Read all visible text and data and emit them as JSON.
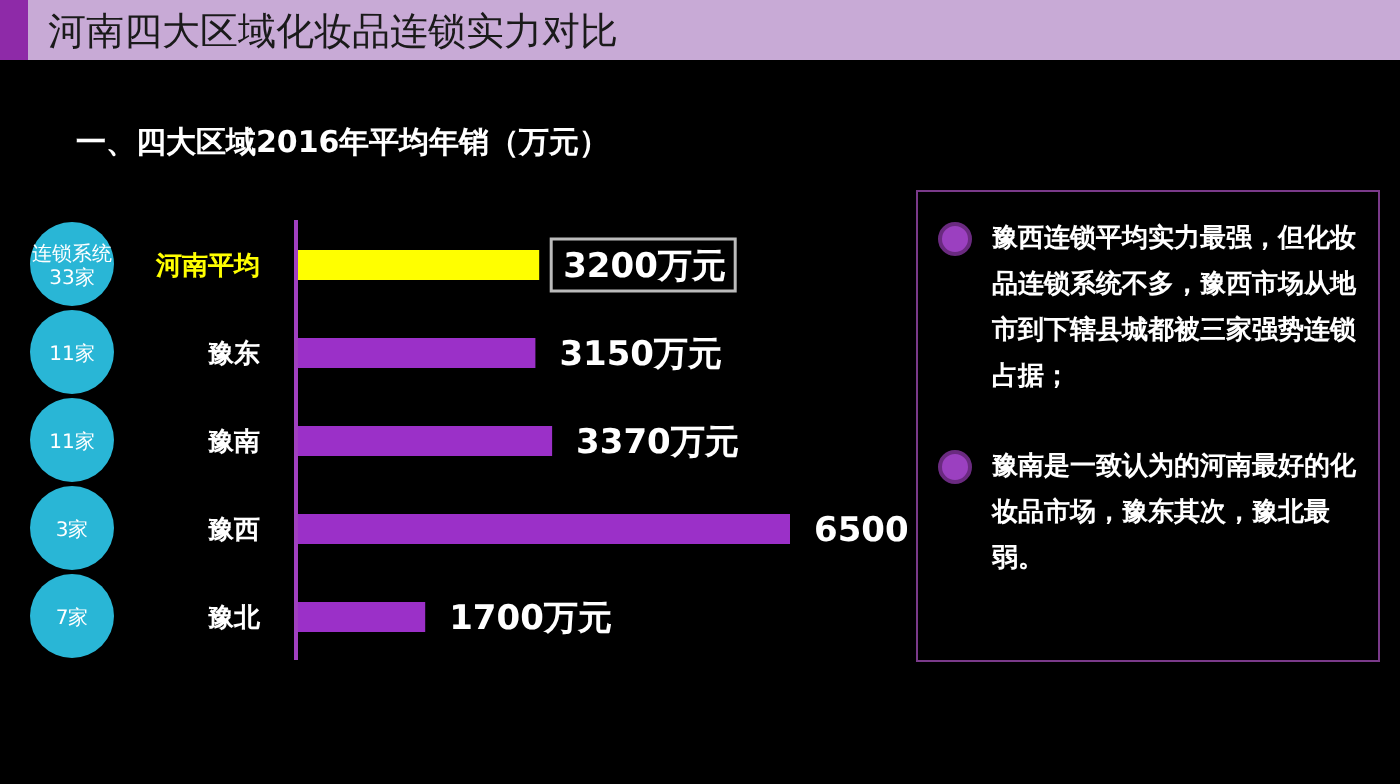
{
  "chart_data": {
    "type": "bar",
    "orientation": "horizontal",
    "title": "河南四大区域化妆品连锁实力对比",
    "subtitle": "一、四大区域2016年平均年销（万元）",
    "categories": [
      "河南平均",
      "豫东",
      "豫南",
      "豫西",
      "豫北"
    ],
    "values": [
      3200,
      3150,
      3370,
      6500,
      1700
    ],
    "colors": [
      "#ffff00",
      "#9b30c8",
      "#9b30c8",
      "#9b30c8",
      "#9b30c8"
    ],
    "value_labels": [
      "3200万元",
      "3150万元",
      "3370万元",
      "6500",
      "1700万元"
    ],
    "annotations": [
      "连锁系统\n33家",
      "11家",
      "11家",
      "3家",
      "7家",
      "豫西连锁平均实力最强，但化妆品连锁系统不多，豫西市场从地市到下辖县城都被三家强势连锁占据；",
      "豫南是一致认为的河南最好的化妆品市场，豫东其次，豫北最弱。"
    ]
  }
}
